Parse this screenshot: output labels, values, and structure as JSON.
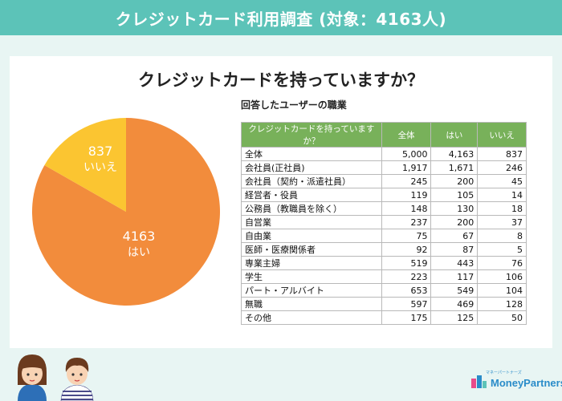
{
  "banner": {
    "title": "クレジットカード利用調査 (対象：4163人)"
  },
  "question": "クレジットカードを持っていますか？",
  "table_title": "回答したユーザーの職業",
  "table": {
    "headers": [
      "クレジットカードを持っていますか？",
      "全体",
      "はい",
      "いいえ"
    ],
    "rows": [
      [
        "全体",
        "5,000",
        "4,163",
        "837"
      ],
      [
        "会社員(正社員)",
        "1,917",
        "1,671",
        "246"
      ],
      [
        "会社員（契約・派遣社員）",
        "245",
        "200",
        "45"
      ],
      [
        "経営者・役員",
        "119",
        "105",
        "14"
      ],
      [
        "公務員（教職員を除く）",
        "148",
        "130",
        "18"
      ],
      [
        "自営業",
        "237",
        "200",
        "37"
      ],
      [
        "自由業",
        "75",
        "67",
        "8"
      ],
      [
        "医師・医療関係者",
        "92",
        "87",
        "5"
      ],
      [
        "専業主婦",
        "519",
        "443",
        "76"
      ],
      [
        "学生",
        "223",
        "117",
        "106"
      ],
      [
        "パート・アルバイト",
        "653",
        "549",
        "104"
      ],
      [
        "無職",
        "597",
        "469",
        "128"
      ],
      [
        "その他",
        "175",
        "125",
        "50"
      ]
    ]
  },
  "chart_data": {
    "type": "pie",
    "title": "",
    "slices": [
      {
        "label": "はい",
        "value": 4163,
        "value_text": "4163",
        "color": "#f28c3c"
      },
      {
        "label": "いいえ",
        "value": 837,
        "value_text": "837",
        "color": "#fbc531"
      }
    ]
  },
  "logo": {
    "text": "MoneyPartners",
    "subtext": "マネーパートナーズ"
  },
  "colors": {
    "banner": "#5cc3b8",
    "header": "#78b15a",
    "background": "#e8f5f3"
  }
}
